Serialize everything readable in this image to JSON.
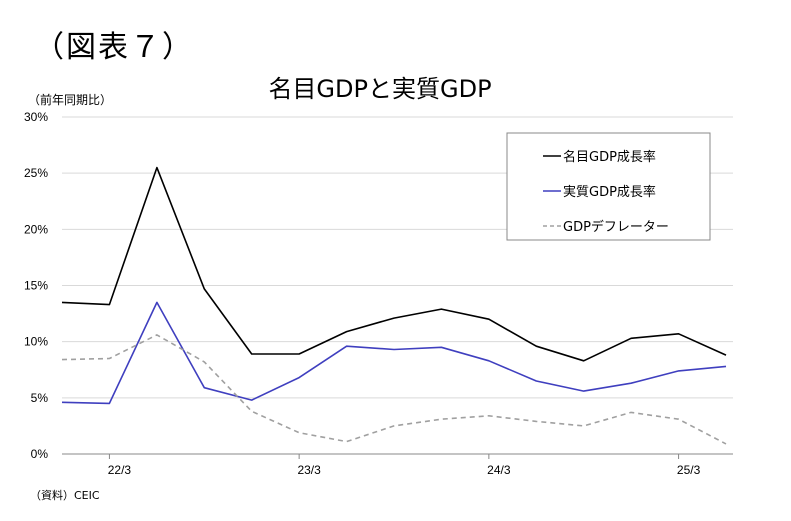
{
  "figure_label": "（図表７）",
  "chart_data": {
    "type": "line",
    "title": "名目GDPと実質GDP",
    "ylabel": "（前年同期比）",
    "source": "（資料）CEIC",
    "ylim": [
      0,
      30
    ],
    "y_ticks": [
      "0%",
      "5%",
      "10%",
      "15%",
      "20%",
      "25%",
      "30%"
    ],
    "y_tick_values": [
      0,
      5,
      10,
      15,
      20,
      25,
      30
    ],
    "x_ticks": [
      "22/3",
      "23/3",
      "24/3",
      "25/3"
    ],
    "x_tick_positions": [
      "2022-03",
      "2023-03",
      "2024-03",
      "2025-03"
    ],
    "x": [
      "2021-12",
      "2022-03",
      "2022-06",
      "2022-09",
      "2022-12",
      "2023-03",
      "2023-06",
      "2023-09",
      "2023-12",
      "2024-03",
      "2024-06",
      "2024-09",
      "2024-12",
      "2025-03",
      "2025-06"
    ],
    "grid": true,
    "legend_position": "top-right",
    "series": [
      {
        "name": "名目GDP成長率",
        "color": "#000000",
        "dash": "solid",
        "values": [
          13.5,
          13.3,
          25.5,
          14.7,
          8.9,
          8.9,
          10.9,
          12.1,
          12.9,
          12.0,
          9.6,
          8.3,
          10.3,
          10.7,
          8.8
        ]
      },
      {
        "name": "実質GDP成長率",
        "color": "#3f3fbf",
        "dash": "solid",
        "values": [
          4.6,
          4.5,
          13.5,
          5.9,
          4.8,
          6.8,
          9.6,
          9.3,
          9.5,
          8.3,
          6.5,
          5.6,
          6.3,
          7.4,
          7.8
        ]
      },
      {
        "name": "GDPデフレーター",
        "color": "#a0a0a0",
        "dash": "dashed",
        "values": [
          8.4,
          8.5,
          10.6,
          8.2,
          3.8,
          1.9,
          1.1,
          2.5,
          3.1,
          3.4,
          2.9,
          2.5,
          3.7,
          3.1,
          0.9
        ]
      }
    ]
  }
}
